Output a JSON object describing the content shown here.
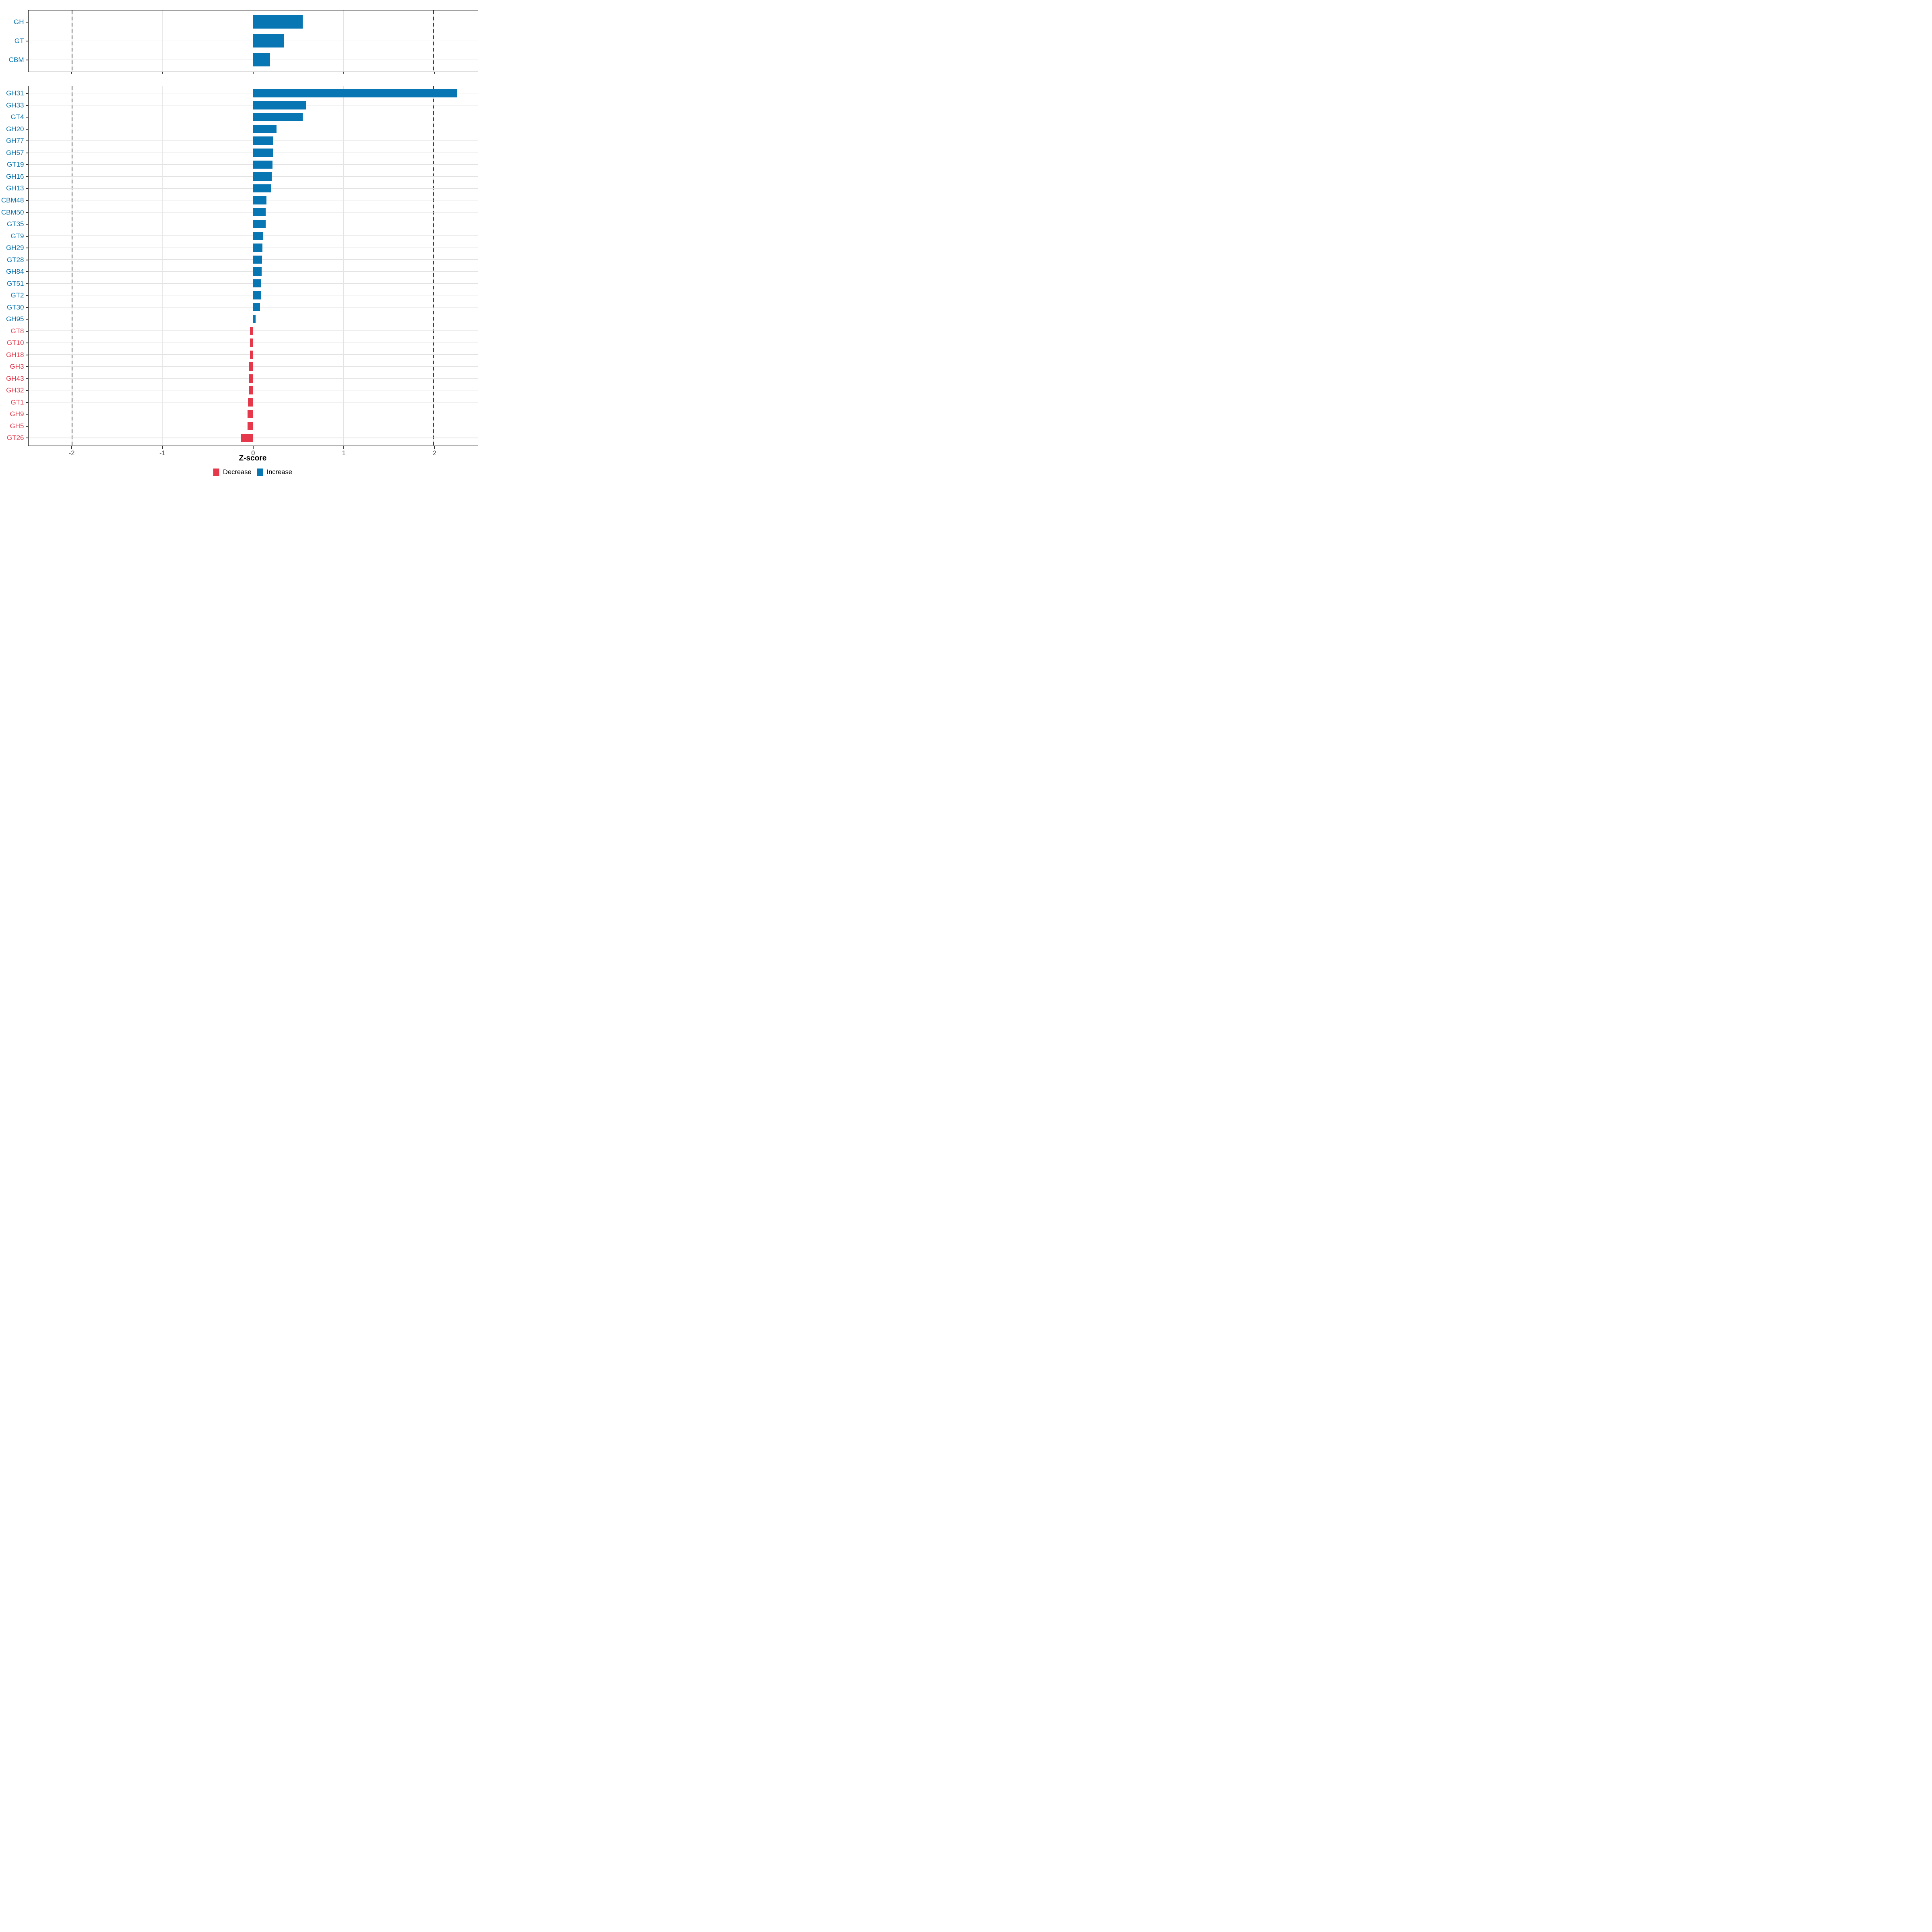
{
  "chart_data": {
    "type": "bar",
    "orientation": "horizontal",
    "title": "",
    "xlabel": "Z-score",
    "xlim": [
      -2.482,
      2.482
    ],
    "x_ticks": [
      -2,
      -1,
      0,
      1,
      2
    ],
    "reference_lines_dashed": [
      -2,
      2
    ],
    "grid": "major",
    "legend_position": "bottom",
    "colors": {
      "increase": "#0776b3",
      "decrease": "#e5394b",
      "tick_text": "#4d4d4d",
      "gridline": "#e3e3e3",
      "panel_border": "#1f1f1f",
      "dashed_line": "#3d3d3d"
    },
    "legend": [
      {
        "label": "Decrease",
        "key": "decrease"
      },
      {
        "label": "Increase",
        "key": "increase"
      }
    ],
    "panels": [
      {
        "name": "class-summary",
        "rows": [
          {
            "category": "GH",
            "value": 0.55,
            "direction": "increase"
          },
          {
            "category": "GT",
            "value": 0.34,
            "direction": "increase"
          },
          {
            "category": "CBM",
            "value": 0.19,
            "direction": "increase"
          }
        ]
      },
      {
        "name": "family-detail",
        "rows": [
          {
            "category": "GH31",
            "value": 2.26,
            "direction": "increase"
          },
          {
            "category": "GH33",
            "value": 0.59,
            "direction": "increase"
          },
          {
            "category": "GT4",
            "value": 0.55,
            "direction": "increase"
          },
          {
            "category": "GH20",
            "value": 0.26,
            "direction": "increase"
          },
          {
            "category": "GH77",
            "value": 0.225,
            "direction": "increase"
          },
          {
            "category": "GH57",
            "value": 0.22,
            "direction": "increase"
          },
          {
            "category": "GT19",
            "value": 0.216,
            "direction": "increase"
          },
          {
            "category": "GH16",
            "value": 0.21,
            "direction": "increase"
          },
          {
            "category": "GH13",
            "value": 0.202,
            "direction": "increase"
          },
          {
            "category": "CBM48",
            "value": 0.152,
            "direction": "increase"
          },
          {
            "category": "CBM50",
            "value": 0.141,
            "direction": "increase"
          },
          {
            "category": "GT35",
            "value": 0.14,
            "direction": "increase"
          },
          {
            "category": "GT9",
            "value": 0.109,
            "direction": "increase"
          },
          {
            "category": "GH29",
            "value": 0.107,
            "direction": "increase"
          },
          {
            "category": "GT28",
            "value": 0.102,
            "direction": "increase"
          },
          {
            "category": "GH84",
            "value": 0.097,
            "direction": "increase"
          },
          {
            "category": "GT51",
            "value": 0.091,
            "direction": "increase"
          },
          {
            "category": "GT2",
            "value": 0.089,
            "direction": "increase"
          },
          {
            "category": "GT30",
            "value": 0.08,
            "direction": "increase"
          },
          {
            "category": "GH95",
            "value": 0.029,
            "direction": "increase"
          },
          {
            "category": "GT8",
            "value": -0.032,
            "direction": "decrease"
          },
          {
            "category": "GT10",
            "value": -0.032,
            "direction": "decrease"
          },
          {
            "category": "GH18",
            "value": -0.033,
            "direction": "decrease"
          },
          {
            "category": "GH3",
            "value": -0.042,
            "direction": "decrease"
          },
          {
            "category": "GH43",
            "value": -0.045,
            "direction": "decrease"
          },
          {
            "category": "GH32",
            "value": -0.045,
            "direction": "decrease"
          },
          {
            "category": "GT1",
            "value": -0.056,
            "direction": "decrease"
          },
          {
            "category": "GH9",
            "value": -0.057,
            "direction": "decrease"
          },
          {
            "category": "GH5",
            "value": -0.057,
            "direction": "decrease"
          },
          {
            "category": "GT26",
            "value": -0.135,
            "direction": "decrease"
          }
        ]
      }
    ]
  }
}
